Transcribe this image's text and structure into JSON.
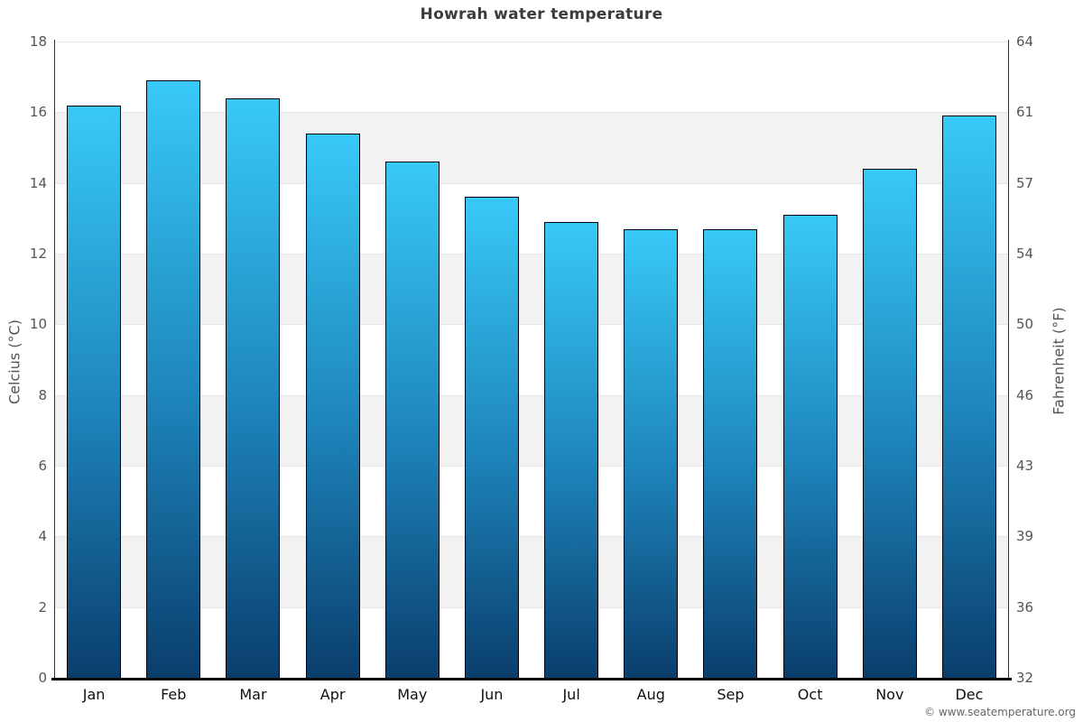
{
  "page": {
    "footer_credit": "© www.seatemperature.org"
  },
  "chart_data": {
    "type": "bar",
    "title": "Howrah water temperature",
    "categories": [
      "Jan",
      "Feb",
      "Mar",
      "Apr",
      "May",
      "Jun",
      "Jul",
      "Aug",
      "Sep",
      "Oct",
      "Nov",
      "Dec"
    ],
    "values": [
      16.2,
      16.9,
      16.4,
      15.4,
      14.6,
      13.6,
      12.9,
      12.7,
      12.7,
      13.1,
      14.4,
      15.9
    ],
    "series_name": "Water temperature (°C)",
    "xlabel": "",
    "ylabel_left": "Celcius (°C)",
    "ylabel_right": "Fahrenheit (°F)",
    "ylim": [
      0,
      18
    ],
    "yticks_left": [
      18,
      16,
      14,
      12,
      10,
      8,
      6,
      4,
      2,
      0
    ],
    "yticks_right": [
      64,
      61,
      57,
      54,
      50,
      46,
      43,
      39,
      36,
      32
    ],
    "grid": "alternating horizontal bands, gray on 14-16, 10-12, 6-8, 2-4",
    "legend": "none",
    "colors": {
      "bar_gradient_top": "#38c9f8",
      "bar_gradient_mid": "#1e86bd",
      "bar_gradient_bottom": "#0a3e6c",
      "bar_border": "#000000",
      "band_gray": "#f2f2f2",
      "gridline": "#e6e6e6",
      "axis_line": "#333333",
      "baseline": "#000000",
      "title_text": "#3c3c3c",
      "tick_text": "#555555",
      "month_text": "#111111",
      "footer_text": "#666666"
    }
  }
}
